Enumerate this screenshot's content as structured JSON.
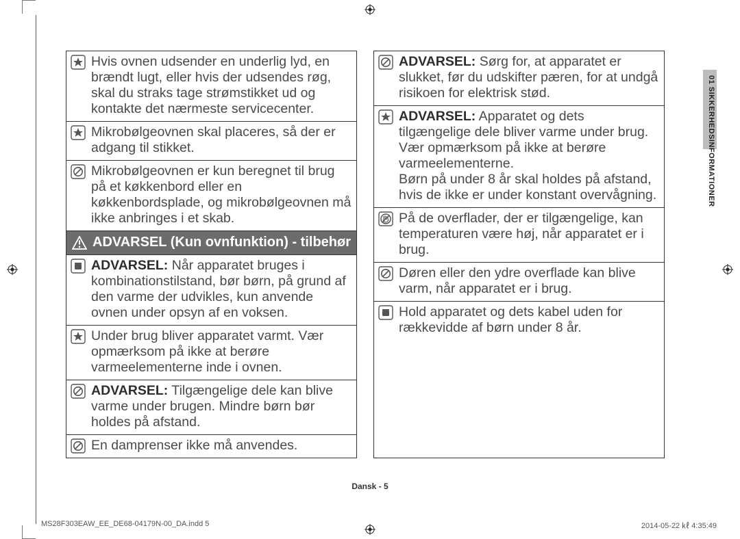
{
  "side_tab": "01  SIKKERHEDSINFORMATIONER",
  "header_col1": "ADVARSEL (Kun ovnfunktion) - tilbehør",
  "col1_rows": [
    {
      "icon": "star",
      "text": "Hvis ovnen udsender en underlig lyd, en brændt lugt, eller hvis der udsendes røg, skal du straks tage strømstikket ud og kontakte det nærmeste servicecenter."
    },
    {
      "icon": "star",
      "text": "Mikrobølgeovnen skal placeres, så der er adgang til stikket."
    },
    {
      "icon": "nocircle",
      "text": "Mikrobølgeovnen er kun beregnet til brug på et køkkenbord eller en køkkenbordsplade, og mikrobølgeovnen må ikke anbringes i et skab."
    }
  ],
  "col1_rows2": [
    {
      "icon": "square",
      "text": "<b>ADVARSEL:</b> Når apparatet bruges i kombinationstilstand, bør børn, på grund af den varme der udvikles, kun anvende ovnen under opsyn af en voksen."
    },
    {
      "icon": "star",
      "text": "Under brug bliver apparatet varmt. Vær opmærksom på ikke at berøre varmeelementerne inde i ovnen."
    },
    {
      "icon": "nocircle",
      "text": "<b>ADVARSEL:</b> Tilgængelige dele kan blive varme under brugen. Mindre børn bør holdes på afstand."
    },
    {
      "icon": "nocircle",
      "text": "En damprenser ikke må anvendes."
    }
  ],
  "col2_rows": [
    {
      "icon": "nocircle",
      "text": "<b>ADVARSEL:</b> Sørg for, at apparatet er slukket, før du udskifter pæren, for at undgå risikoen for elektrisk stød."
    },
    {
      "icon": "star",
      "text": "<b>ADVARSEL:</b> Apparatet og dets tilgængelige dele bliver varme under brug.<br>Vær opmærksom på ikke at berøre varmeelementerne.<br>Børn på under 8 år skal holdes på afstand, hvis de ikke er under konstant overvågning."
    },
    {
      "icon": "notouch",
      "text": "På de overflader, der er tilgængelige, kan temperaturen være høj, når apparatet er i brug."
    },
    {
      "icon": "nocircle",
      "text": "Døren eller den ydre overflade kan blive varm, når apparatet er i brug."
    },
    {
      "icon": "square",
      "text": "Hold apparatet og dets kabel uden for rækkevidde af børn under 8 år."
    }
  ],
  "footer_center": "Dansk - 5",
  "footer_left": "MS28F303EAW_EE_DE68-04179N-00_DA.indd   5",
  "footer_right": "2014-05-22   ㎘ 4:35:49"
}
